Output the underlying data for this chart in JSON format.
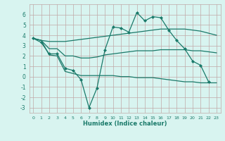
{
  "x_main": [
    0,
    1,
    2,
    3,
    4,
    5,
    6,
    7,
    8,
    9,
    10,
    11,
    12,
    13,
    14,
    15,
    16,
    17,
    18,
    19,
    20,
    21,
    22
  ],
  "line_main": [
    3.7,
    3.3,
    2.2,
    2.2,
    0.8,
    0.6,
    -0.3,
    -3.0,
    -1.1,
    2.6,
    4.8,
    4.7,
    4.3,
    6.2,
    5.4,
    5.8,
    5.7,
    4.5,
    3.5,
    2.7,
    1.5,
    1.1,
    -0.5
  ],
  "x_env": [
    0,
    1,
    2,
    3,
    4,
    5,
    6,
    7,
    8,
    9,
    10,
    11,
    12,
    13,
    14,
    15,
    16,
    17,
    18,
    19,
    20,
    21,
    22,
    23
  ],
  "line_upper": [
    3.7,
    3.5,
    3.4,
    3.4,
    3.4,
    3.5,
    3.6,
    3.7,
    3.8,
    3.9,
    4.0,
    4.1,
    4.2,
    4.3,
    4.4,
    4.5,
    4.6,
    4.6,
    4.6,
    4.6,
    4.5,
    4.4,
    4.2,
    4.0
  ],
  "line_lower": [
    3.7,
    3.5,
    2.1,
    2.0,
    0.5,
    0.3,
    0.1,
    0.1,
    0.1,
    0.1,
    0.1,
    0.0,
    0.0,
    -0.1,
    -0.1,
    -0.1,
    -0.2,
    -0.3,
    -0.4,
    -0.5,
    -0.5,
    -0.6,
    -0.6,
    -0.6
  ],
  "line_mid": [
    3.7,
    3.5,
    2.7,
    2.7,
    2.0,
    2.0,
    1.8,
    1.8,
    1.9,
    2.1,
    2.2,
    2.3,
    2.4,
    2.5,
    2.5,
    2.5,
    2.6,
    2.6,
    2.6,
    2.6,
    2.5,
    2.5,
    2.4,
    2.3
  ],
  "color": "#1a7a6a",
  "bg_color": "#d8f4f0",
  "grid_color": "#c0a8a8",
  "xlabel": "Humidex (Indice chaleur)",
  "ylim": [
    -3.5,
    7.0
  ],
  "xlim": [
    -0.5,
    23.5
  ],
  "yticks": [
    -3,
    -2,
    -1,
    0,
    1,
    2,
    3,
    4,
    5,
    6
  ],
  "xticks": [
    0,
    1,
    2,
    3,
    4,
    5,
    6,
    7,
    8,
    9,
    10,
    11,
    12,
    13,
    14,
    15,
    16,
    17,
    18,
    19,
    20,
    21,
    22,
    23
  ]
}
